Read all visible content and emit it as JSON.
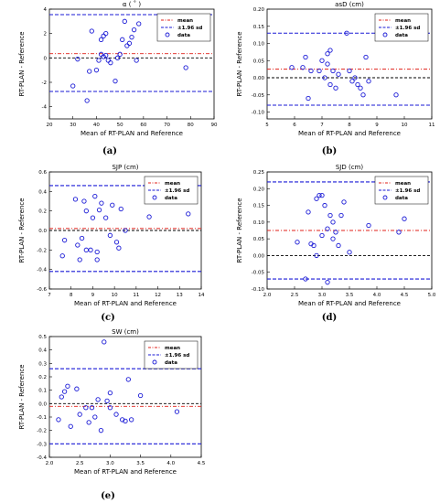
{
  "chart_data": [
    {
      "type": "scatter",
      "caption": "(a)",
      "title": "α ( ˚ )",
      "xlabel": "Mean of RT-PLAN and Reference",
      "ylabel": "RT-PLAN - Reference",
      "xlim": [
        20,
        90
      ],
      "ylim": [
        -5,
        4
      ],
      "xticks": [
        20,
        30,
        40,
        50,
        60,
        70,
        80,
        90
      ],
      "yticks": [
        -4,
        -2,
        0,
        2,
        4
      ],
      "mean": 0.35,
      "sd_upper": 3.55,
      "sd_lower": -2.75,
      "legend": [
        "mean",
        "±1.96 sd",
        "data"
      ],
      "legend_position": "top-right",
      "points": [
        [
          30,
          -2.3
        ],
        [
          32,
          -0.1
        ],
        [
          36,
          -3.5
        ],
        [
          37,
          -1.1
        ],
        [
          38,
          2.2
        ],
        [
          40,
          -1
        ],
        [
          41,
          -0.2
        ],
        [
          42,
          0.3
        ],
        [
          42,
          1.5
        ],
        [
          43,
          1.8
        ],
        [
          43,
          0.1
        ],
        [
          44,
          2.0
        ],
        [
          44,
          0.2
        ],
        [
          45,
          -0.2
        ],
        [
          46,
          -0.4
        ],
        [
          48,
          -1.9
        ],
        [
          49,
          0
        ],
        [
          50,
          0.3
        ],
        [
          51,
          1.5
        ],
        [
          52,
          3.0
        ],
        [
          53,
          1.0
        ],
        [
          54,
          1.2
        ],
        [
          55,
          1.7
        ],
        [
          56,
          2.3
        ],
        [
          57,
          -0.2
        ],
        [
          58,
          2.8
        ],
        [
          78,
          -0.8
        ]
      ]
    },
    {
      "type": "scatter",
      "caption": "(b)",
      "title": "asD (cm)",
      "xlabel": "Mean of RT-PLAN and Reference",
      "ylabel": "RT-PLAN - Reference",
      "xlim": [
        5,
        11
      ],
      "ylim": [
        -0.12,
        0.2
      ],
      "xticks": [
        5,
        6,
        7,
        8,
        9,
        10,
        11
      ],
      "yticks": [
        -0.1,
        -0.05,
        0.0,
        0.05,
        0.1,
        0.15,
        0.2
      ],
      "mean": 0.025,
      "sd_upper": 0.13,
      "sd_lower": -0.08,
      "legend": [
        "mean",
        "±1.96 sd",
        "data"
      ],
      "legend_position": "top-right",
      "points": [
        [
          5.9,
          0.03
        ],
        [
          6.3,
          0.03
        ],
        [
          6.4,
          0.06
        ],
        [
          6.5,
          -0.06
        ],
        [
          6.6,
          0.02
        ],
        [
          6.9,
          0.02
        ],
        [
          7.0,
          0.05
        ],
        [
          7.1,
          0.0
        ],
        [
          7.2,
          0.07
        ],
        [
          7.2,
          0.04
        ],
        [
          7.3,
          0.08
        ],
        [
          7.3,
          -0.02
        ],
        [
          7.4,
          0.02
        ],
        [
          7.5,
          -0.03
        ],
        [
          7.6,
          0.01
        ],
        [
          7.9,
          0.13
        ],
        [
          8.0,
          0.02
        ],
        [
          8.1,
          -0.01
        ],
        [
          8.2,
          0.0
        ],
        [
          8.3,
          -0.02
        ],
        [
          8.4,
          -0.03
        ],
        [
          8.5,
          -0.05
        ],
        [
          8.6,
          0.06
        ],
        [
          8.7,
          -0.01
        ],
        [
          9.7,
          -0.05
        ]
      ]
    },
    {
      "type": "scatter",
      "caption": "(c)",
      "title": "SJP (cm)",
      "xlabel": "Mean of RT-PLAN and Reference",
      "ylabel": "RT-PLAN - Reference",
      "xlim": [
        7,
        14
      ],
      "ylim": [
        -0.6,
        0.6
      ],
      "xticks": [
        7,
        8,
        9,
        10,
        11,
        12,
        13,
        14
      ],
      "yticks": [
        -0.6,
        -0.4,
        -0.2,
        0.0,
        0.2,
        0.4,
        0.6
      ],
      "mean": 0.02,
      "sd_upper": 0.46,
      "sd_lower": -0.42,
      "legend": [
        "mean",
        "±1.96 sd",
        "data"
      ],
      "legend_position": "top-right",
      "points": [
        [
          7.6,
          -0.26
        ],
        [
          7.7,
          -0.1
        ],
        [
          8.2,
          0.32
        ],
        [
          8.3,
          -0.15
        ],
        [
          8.4,
          -0.3
        ],
        [
          8.5,
          -0.08
        ],
        [
          8.6,
          0.3
        ],
        [
          8.7,
          0.2
        ],
        [
          8.7,
          -0.2
        ],
        [
          8.9,
          -0.2
        ],
        [
          9.0,
          0.13
        ],
        [
          9.1,
          0.35
        ],
        [
          9.2,
          -0.22
        ],
        [
          9.2,
          -0.3
        ],
        [
          9.3,
          0.21
        ],
        [
          9.4,
          0.28
        ],
        [
          9.6,
          0.13
        ],
        [
          9.8,
          -0.05
        ],
        [
          9.9,
          0.26
        ],
        [
          10.1,
          -0.12
        ],
        [
          10.2,
          -0.18
        ],
        [
          10.3,
          0.22
        ],
        [
          10.5,
          0.0
        ],
        [
          11.6,
          0.14
        ],
        [
          13.4,
          0.17
        ]
      ]
    },
    {
      "type": "scatter",
      "caption": "(d)",
      "title": "SJD (cm)",
      "xlabel": "Mean of RT-PLAN and Reference",
      "ylabel": "RT-PLAN - Reference",
      "xlim": [
        2.0,
        5.0
      ],
      "ylim": [
        -0.1,
        0.25
      ],
      "xticks": [
        2.0,
        2.5,
        3.0,
        3.5,
        4.0,
        4.5,
        5.0
      ],
      "yticks": [
        -0.1,
        -0.05,
        0.0,
        0.05,
        0.1,
        0.15,
        0.2,
        0.25
      ],
      "mean": 0.075,
      "sd_upper": 0.22,
      "sd_lower": -0.07,
      "legend": [
        "mean",
        "±1.96 sd",
        "data"
      ],
      "legend_position": "top-right",
      "points": [
        [
          2.55,
          0.04
        ],
        [
          2.7,
          -0.07
        ],
        [
          2.75,
          0.13
        ],
        [
          2.8,
          0.035
        ],
        [
          2.85,
          0.03
        ],
        [
          2.9,
          0.17
        ],
        [
          2.9,
          0.0
        ],
        [
          2.95,
          0.18
        ],
        [
          3.0,
          0.18
        ],
        [
          3.0,
          0.06
        ],
        [
          3.05,
          0.15
        ],
        [
          3.1,
          0.08
        ],
        [
          3.1,
          -0.08
        ],
        [
          3.15,
          0.12
        ],
        [
          3.2,
          0.1
        ],
        [
          3.2,
          0.05
        ],
        [
          3.25,
          0.07
        ],
        [
          3.3,
          0.03
        ],
        [
          3.35,
          0.12
        ],
        [
          3.4,
          0.16
        ],
        [
          3.5,
          0.01
        ],
        [
          3.85,
          0.09
        ],
        [
          4.4,
          0.07
        ],
        [
          4.5,
          0.11
        ]
      ]
    },
    {
      "type": "scatter",
      "caption": "(e)",
      "title": "SW (cm)",
      "xlabel": "Mean of RT-PLAN and Reference",
      "ylabel": "RT-PLAN - Reference",
      "xlim": [
        2.0,
        4.5
      ],
      "ylim": [
        -0.4,
        0.5
      ],
      "xticks": [
        2.0,
        2.5,
        3.0,
        3.5,
        4.0,
        4.5
      ],
      "yticks": [
        -0.4,
        -0.3,
        -0.2,
        -0.1,
        0.0,
        0.1,
        0.2,
        0.3,
        0.4,
        0.5
      ],
      "mean": -0.02,
      "sd_upper": 0.26,
      "sd_lower": -0.3,
      "legend": [
        "mean",
        "±1.96 sd",
        "data"
      ],
      "legend_position": "top-right",
      "points": [
        [
          2.15,
          -0.12
        ],
        [
          2.2,
          0.05
        ],
        [
          2.25,
          0.09
        ],
        [
          2.3,
          0.13
        ],
        [
          2.35,
          -0.17
        ],
        [
          2.45,
          0.11
        ],
        [
          2.5,
          -0.08
        ],
        [
          2.6,
          -0.03
        ],
        [
          2.65,
          -0.14
        ],
        [
          2.7,
          -0.03
        ],
        [
          2.75,
          -0.1
        ],
        [
          2.8,
          0.03
        ],
        [
          2.85,
          -0.2
        ],
        [
          2.9,
          0.46
        ],
        [
          2.95,
          0.02
        ],
        [
          3.0,
          0.08
        ],
        [
          3.0,
          -0.03
        ],
        [
          3.1,
          -0.08
        ],
        [
          3.2,
          -0.12
        ],
        [
          3.25,
          -0.13
        ],
        [
          3.3,
          0.18
        ],
        [
          3.35,
          -0.12
        ],
        [
          3.5,
          0.06
        ],
        [
          4.1,
          -0.06
        ]
      ]
    }
  ]
}
